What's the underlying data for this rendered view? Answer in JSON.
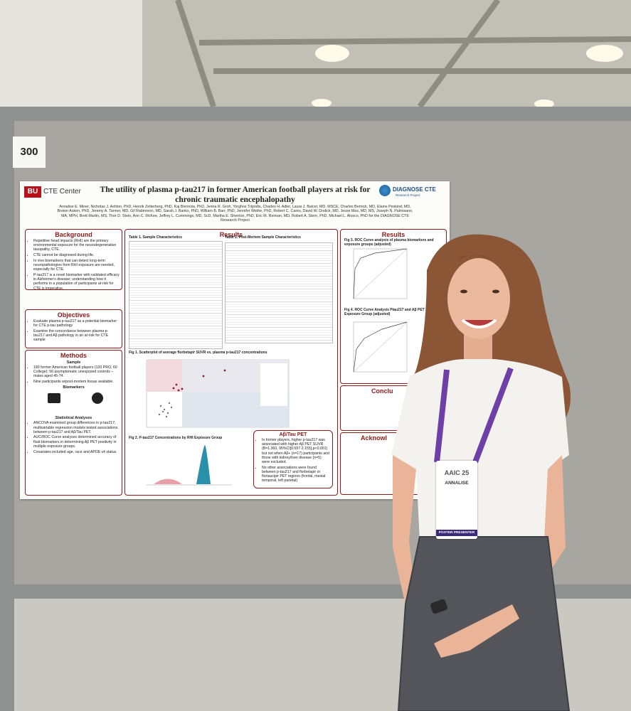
{
  "board_number": "300",
  "poster": {
    "logo_left": {
      "mark": "BU",
      "text": "CTE Center"
    },
    "title": "The utility of plasma p-tau217 in former American football players at risk for chronic traumatic encephalopathy",
    "logo_right": {
      "text": "DIAGNOSE CTE",
      "subtext": "Research Project"
    },
    "authors": "Annalise E. Miner, Nicholas J. Ashton, PhD, Henrik Zetterberg, PhD, Kaj Blennow, PhD, Jenna R. Groh, Yorghos Tripodis, Charles H. Adler, Laura J. Balcer, MD, MSCE, Charles Bernick, MD, Elaine Peskind, MD, Breton Asken, PhD, Jeremy A. Tanner, MD, Gil Rabinovici, MD, Sarah J. Banks, PhD, William B. Barr, PhD, Jennifer Wethe, PhD, Robert C. Cantu, David W. Dodick, MD, Jesse Mez, MD, MS, Joseph N. Palmisano, MA, MPH, Brett Martin, MS, Thor D. Stein, Ann C. McKee, Jeffrey L. Cummings, MD, ScD, Martha E. Shenton, PhD, Eric M. Reiman, MD, Robert A. Stern, PhD, Michael L. Alosco, PhD for the DIAGNOSE CTE Research Project",
    "background": {
      "heading": "Background",
      "items": [
        "Repetitive head impacts (RHI) are the primary environmental exposure for the neurodegenerative tauopathy, CTE.",
        "CTE cannot be diagnosed during life.",
        "In vivo biomarkers that can detect long-term neuropathologies from RHI exposure are needed, especially for CTE.",
        "P-tau217 is a novel biomarker with validated efficacy in Alzheimer's disease; understanding how it performs in a population of participants at-risk for CTE is imperative."
      ]
    },
    "objectives": {
      "heading": "Objectives",
      "items": [
        "Evaluate plasma p-tau217 as a potential biomarker for CTE p-tau pathology",
        "Examine the concordance between plasma p-tau217 and Aβ pathology in an at-risk for CTE sample"
      ]
    },
    "methods": {
      "heading": "Methods",
      "sample_heading": "Sample",
      "sample_items": [
        "180 former American football players (120 PRO, 60 College); 56 asymptomatic unexposed controls – males aged 45-74.",
        "Nine participants w/post-mortem tissue available."
      ],
      "biomarkers_heading": "Biomarkers",
      "stats_heading": "Statistical Analyses",
      "stats_items": [
        "ANCOVA examined group differences in p-tau217; multivariable regression models tested associations between p-tau217 and Aβ/Tau PET.",
        "AUC/ROC Curve analyses determined accuracy of fluid biomarkers in determining Aβ PET positivity in multiple exposure groups.",
        "Covariates included age, race and APOE ε4 status."
      ]
    },
    "results": {
      "heading": "Results",
      "table1": "Table 1. Sample Characteristics",
      "table2": "Table 2. Post-Mortem Sample Characteristics",
      "fig1": "Fig 1. Scatterplot of average florbetapir SUVR vs. plasma p-tau217 concentrations",
      "fig2": "Fig 2. P-tau217 Concentrations by RHI Exposure Group",
      "pet_heading": "Aβ/Tau PET",
      "pet_items": [
        "In former players, higher p-tau217 was associated with higher Aβ PET SUVR (B=1.360, 95%CI[0.597-2.155],p<0.001) but not when Aβ+ (n=17) participants and those with kidney/liver disease (n=5) were excluded.",
        "No other associations were found between p-tau217 and florbetapir or flortaucipir PET regions (frontal, mesial temporal, left parietal)"
      ]
    },
    "results_right": {
      "heading": "Results",
      "fig3": "Fig 3. ROC Curve analysis of plasma biomarkers and exposure groups (adjusted)",
      "fig4": "Fig 4. ROC Curve Analysis Ptau217 and Aβ PET by Exposure Group (adjusted)",
      "conclusions_heading": "Conclu",
      "ack_heading": "Acknowl"
    }
  },
  "badge": {
    "event": "AAIC 25",
    "name": "ANNALISE",
    "role": "POSTER PRESENTER"
  }
}
